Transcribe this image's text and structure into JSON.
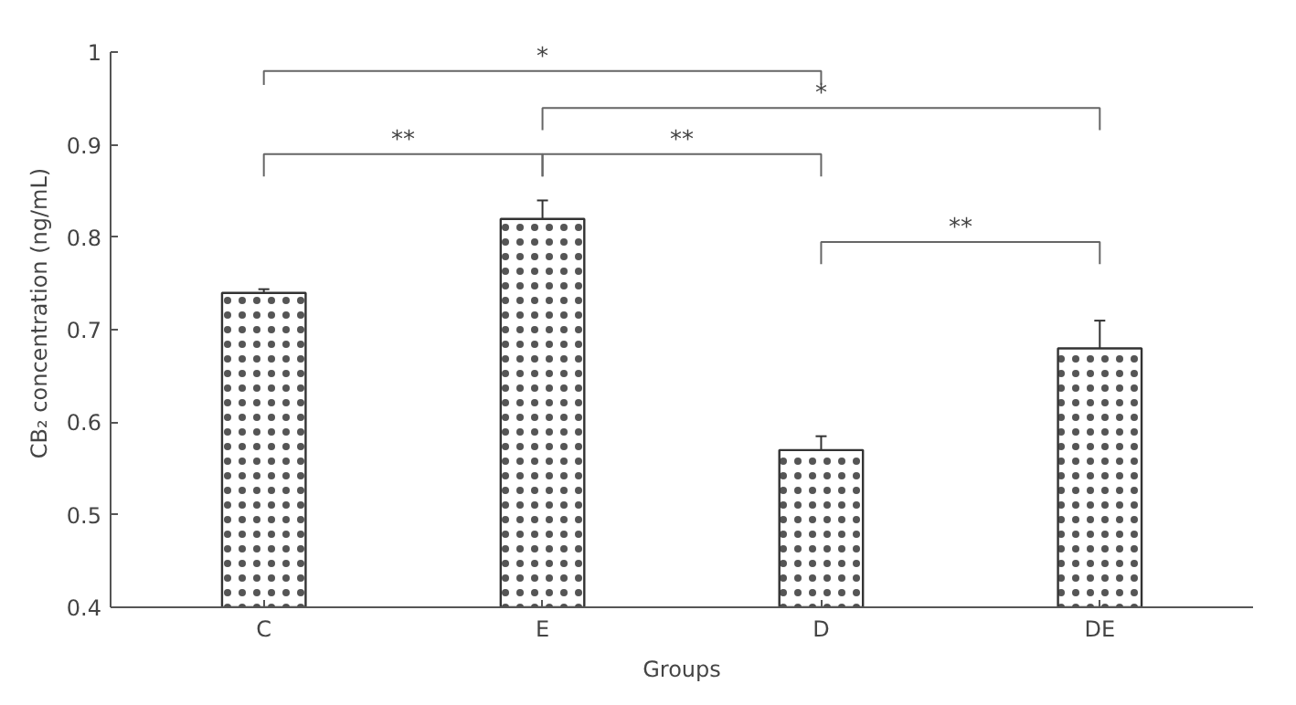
{
  "chart_data": {
    "type": "bar",
    "xlabel": "Groups",
    "ylabel": "CB₂ concentration (ng/mL)",
    "categories": [
      "C",
      "E",
      "D",
      "DE"
    ],
    "values": [
      0.74,
      0.82,
      0.57,
      0.68
    ],
    "errors": [
      0.004,
      0.02,
      0.015,
      0.03
    ],
    "color": "#ffffff",
    "ylim": [
      0.4,
      1
    ],
    "yticks": [
      0.4,
      0.5,
      0.6,
      0.7,
      0.8,
      0.9,
      1
    ],
    "grid": false,
    "annotations": [
      "*",
      "**",
      "*",
      "**",
      "**"
    ]
  }
}
